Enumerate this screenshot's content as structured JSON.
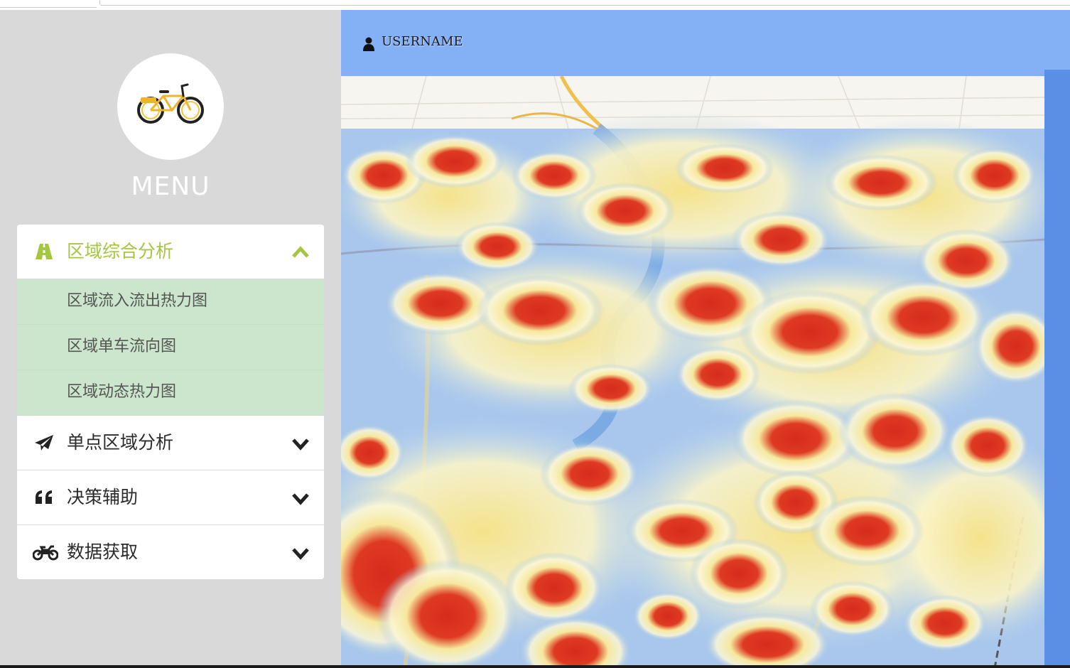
{
  "app": {
    "menu_title": "MENU",
    "logo": "bicycle-logo"
  },
  "user": {
    "name": "USERNAME",
    "icon": "user-icon"
  },
  "menu": {
    "sections": [
      {
        "label": "区域综合分析",
        "icon": "road-icon",
        "expanded": true,
        "items": [
          "区域流入流出热力图",
          "区域单车流向图",
          "区域动态热力图"
        ]
      },
      {
        "label": "单点区域分析",
        "icon": "paper-plane-icon",
        "expanded": false
      },
      {
        "label": "决策辅助",
        "icon": "quote-icon",
        "expanded": false
      },
      {
        "label": "数据获取",
        "icon": "motorcycle-icon",
        "expanded": false
      }
    ]
  },
  "map": {
    "type": "3d-heatmap",
    "colors": {
      "low": "#9cc0e8",
      "mid": "#f6e89c",
      "high": "#d62b1e"
    }
  },
  "colors": {
    "sidebar_bg": "#d9d9d9",
    "topbar_bg": "#84b0f6",
    "accent": "#a4c640",
    "submenu_bg": "#cbe6cc"
  }
}
